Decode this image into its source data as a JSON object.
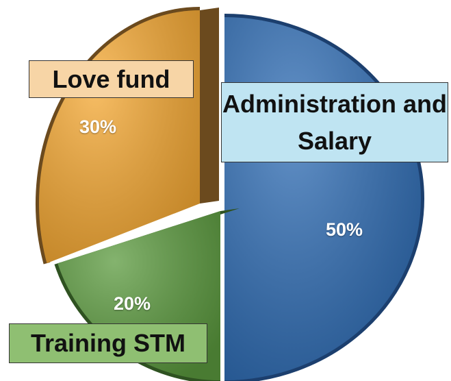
{
  "chart_data": {
    "type": "pie",
    "categories": [
      "Administration and Salary",
      "Training STM",
      "Love fund"
    ],
    "values": [
      50,
      20,
      30
    ],
    "value_labels": [
      "50%",
      "20%",
      "30%"
    ],
    "colors": [
      "#2f6db5",
      "#5b9a3e",
      "#f5a832"
    ]
  }
}
